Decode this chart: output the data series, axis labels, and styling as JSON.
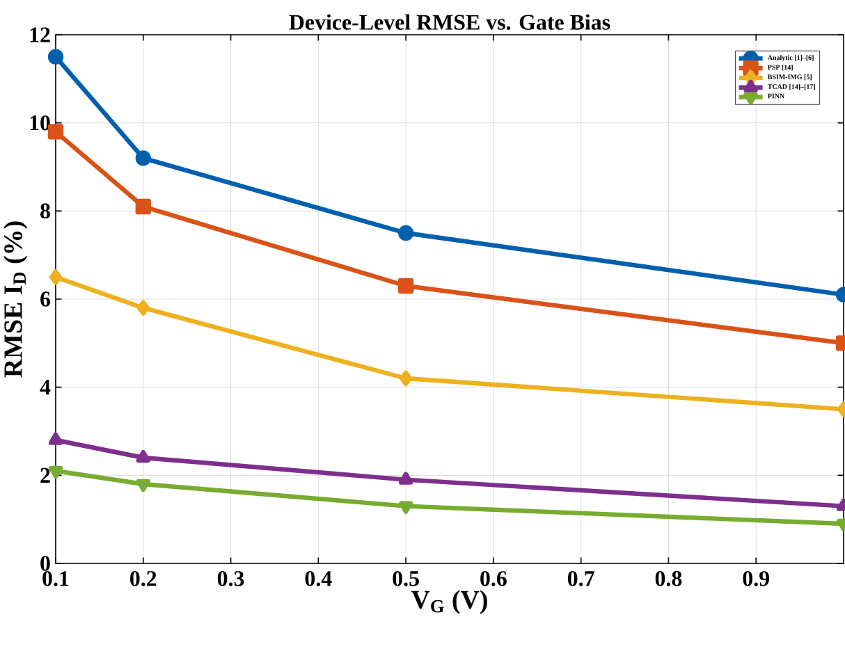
{
  "chart_data": {
    "type": "line",
    "title": "Device-Level RMSE vs. Gate Bias",
    "xlabel": "V$_{G}$ (V)",
    "ylabel": "RMSE I$_{D}$ (%)",
    "x": [
      0.1,
      0.2,
      0.5,
      1.0
    ],
    "series": [
      {
        "name": "Analytic [1]–[6]",
        "color": "#0060ad",
        "marker": "circle",
        "values": [
          11.5,
          9.2,
          7.5,
          6.1
        ]
      },
      {
        "name": "PSP [14]",
        "color": "#d95319",
        "marker": "square",
        "values": [
          9.8,
          8.1,
          6.3,
          5.0
        ]
      },
      {
        "name": "BSIM-IMG [5]",
        "color": "#edb120",
        "marker": "diamond",
        "values": [
          6.5,
          5.8,
          4.2,
          3.5
        ]
      },
      {
        "name": "TCAD [14]–[17]",
        "color": "#7e2f8e",
        "marker": "triangle",
        "values": [
          2.8,
          2.4,
          1.9,
          1.3
        ]
      },
      {
        "name": "PINN",
        "color": "#77ac30",
        "marker": "triangle-down",
        "values": [
          2.1,
          1.8,
          1.3,
          0.9
        ]
      }
    ],
    "xlim": [
      0.1,
      1.0
    ],
    "ylim": [
      0,
      12
    ],
    "xticks": [
      0.1,
      0.2,
      0.3,
      0.4,
      0.5,
      0.6,
      0.7,
      0.8,
      0.9
    ],
    "yticks": [
      0,
      2,
      4,
      6,
      8,
      10,
      12
    ],
    "grid": true,
    "legend": "top right",
    "line_style": "solid"
  }
}
